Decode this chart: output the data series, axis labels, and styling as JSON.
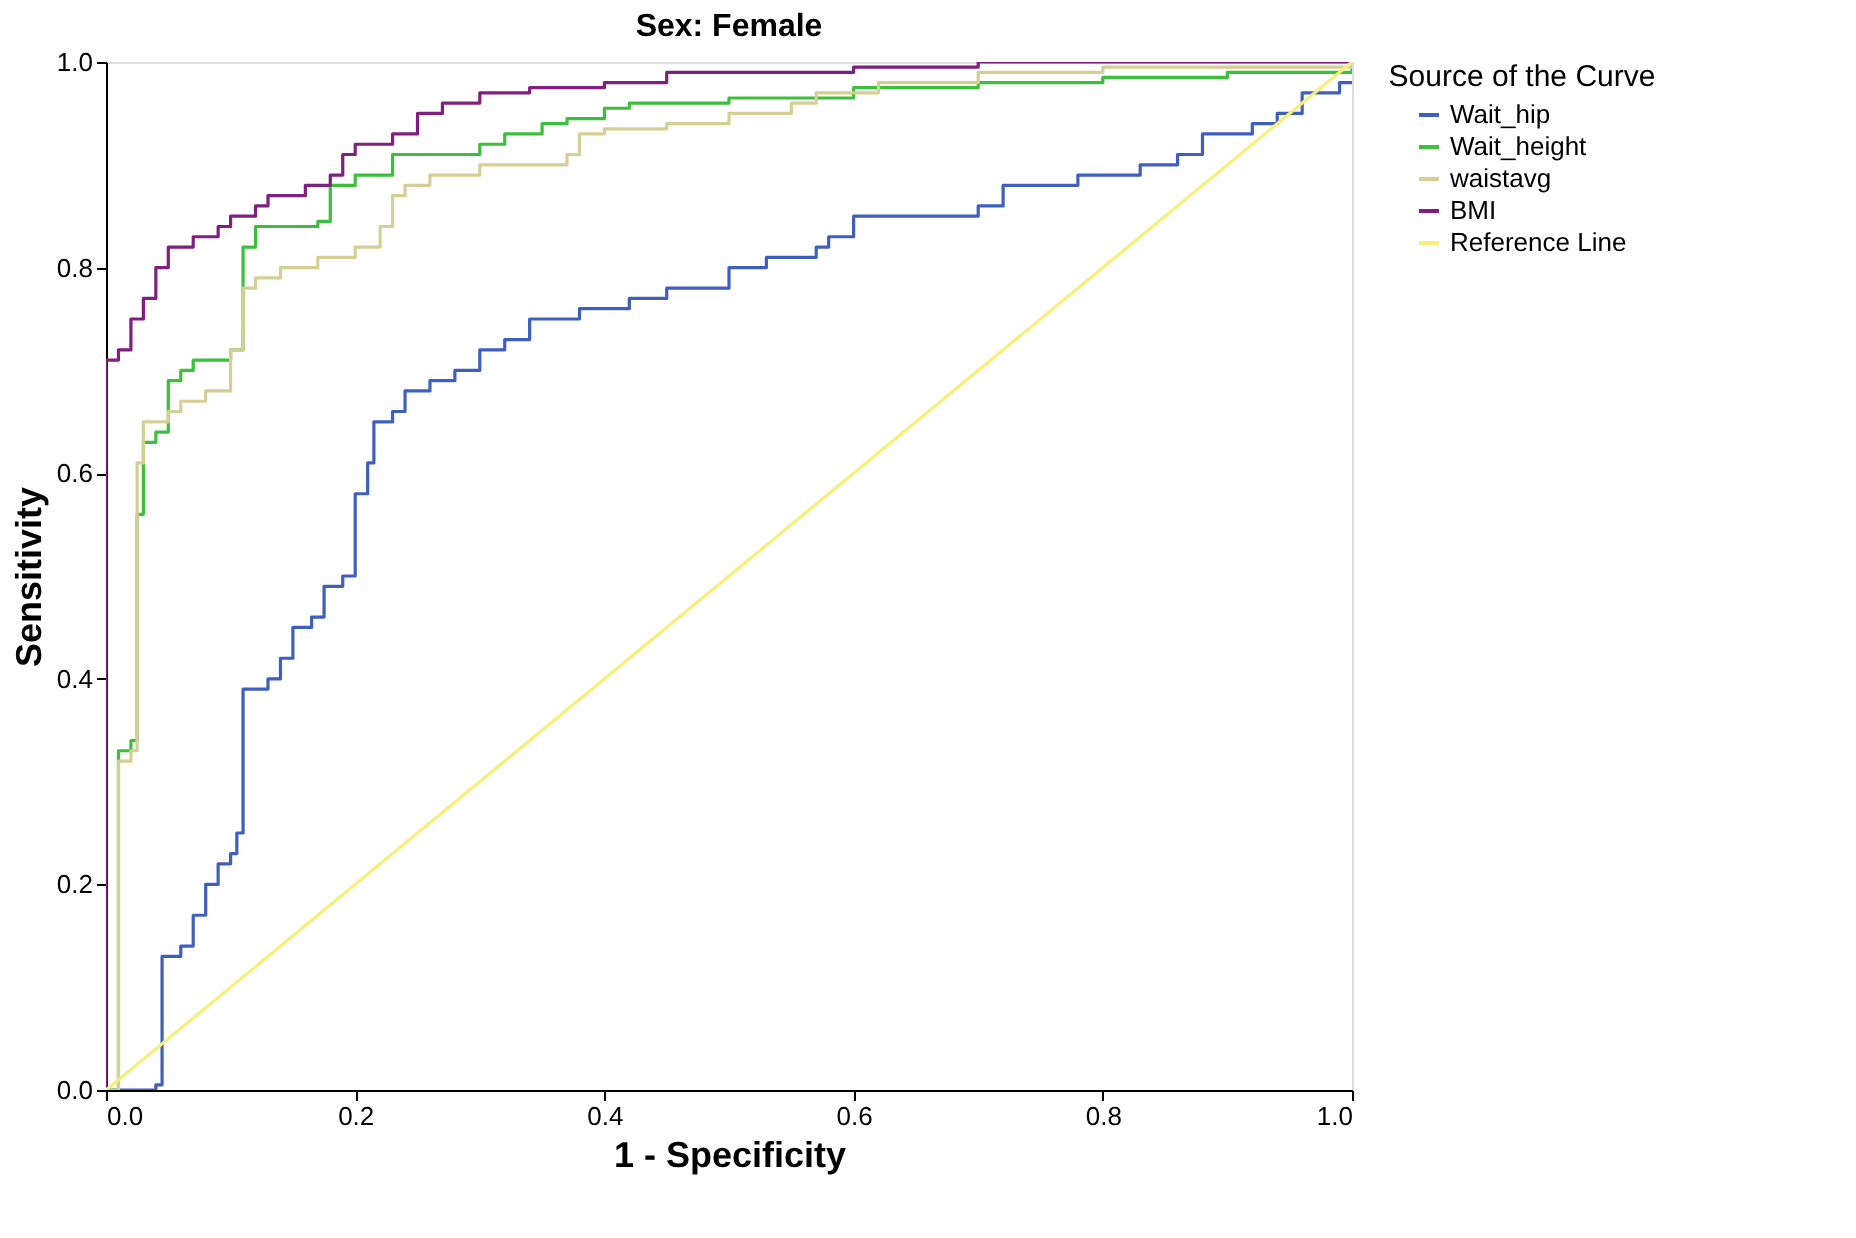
{
  "chart_data": {
    "type": "step",
    "title": "Sex: Female",
    "xlabel": "1 - Specificity",
    "ylabel": "Sensitivity",
    "legend_title": "Source of the Curve",
    "legend": "right",
    "grid": false,
    "marker": "none",
    "xlim": [
      0,
      1
    ],
    "ylim": [
      0,
      1
    ],
    "xticks": [
      {
        "value": 0,
        "label": "0.0"
      },
      {
        "value": 0.2,
        "label": "0.2"
      },
      {
        "value": 0.4,
        "label": "0.4"
      },
      {
        "value": 0.6,
        "label": "0.6"
      },
      {
        "value": 0.8,
        "label": "0.8"
      },
      {
        "value": 1,
        "label": "1.0"
      }
    ],
    "yticks": [
      {
        "value": 0,
        "label": "0.0"
      },
      {
        "value": 0.2,
        "label": "0.2"
      },
      {
        "value": 0.4,
        "label": "0.4"
      },
      {
        "value": 0.6,
        "label": "0.6"
      },
      {
        "value": 0.8,
        "label": "0.8"
      },
      {
        "value": 1,
        "label": "1.0"
      }
    ],
    "series": [
      {
        "name": "Wait_hip",
        "color": "#3f5fbf",
        "x": [
          0,
          0.04,
          0.045,
          0.06,
          0.07,
          0.08,
          0.09,
          0.1,
          0.105,
          0.11,
          0.13,
          0.14,
          0.15,
          0.165,
          0.175,
          0.19,
          0.2,
          0.21,
          0.215,
          0.23,
          0.24,
          0.26,
          0.28,
          0.3,
          0.32,
          0.34,
          0.38,
          0.42,
          0.45,
          0.5,
          0.53,
          0.57,
          0.58,
          0.6,
          0.7,
          0.72,
          0.78,
          0.83,
          0.86,
          0.88,
          0.92,
          0.94,
          0.96,
          0.99,
          1.0
        ],
        "values": [
          0,
          0.005,
          0.13,
          0.14,
          0.17,
          0.2,
          0.22,
          0.23,
          0.25,
          0.39,
          0.4,
          0.42,
          0.45,
          0.46,
          0.49,
          0.5,
          0.58,
          0.61,
          0.65,
          0.66,
          0.68,
          0.69,
          0.7,
          0.72,
          0.73,
          0.75,
          0.76,
          0.77,
          0.78,
          0.8,
          0.81,
          0.82,
          0.83,
          0.85,
          0.86,
          0.88,
          0.89,
          0.9,
          0.91,
          0.93,
          0.94,
          0.95,
          0.97,
          0.98,
          0.98
        ]
      },
      {
        "name": "Wait_height",
        "color": "#3cc03c",
        "x": [
          0,
          0.01,
          0.02,
          0.025,
          0.03,
          0.04,
          0.05,
          0.06,
          0.07,
          0.1,
          0.11,
          0.12,
          0.17,
          0.18,
          0.2,
          0.23,
          0.3,
          0.32,
          0.35,
          0.37,
          0.4,
          0.42,
          0.5,
          0.6,
          0.7,
          0.8,
          0.9,
          1.0
        ],
        "values": [
          0,
          0.33,
          0.34,
          0.56,
          0.63,
          0.64,
          0.69,
          0.7,
          0.71,
          0.72,
          0.82,
          0.84,
          0.845,
          0.88,
          0.89,
          0.91,
          0.92,
          0.93,
          0.94,
          0.945,
          0.955,
          0.96,
          0.965,
          0.975,
          0.98,
          0.985,
          0.99,
          0.995
        ]
      },
      {
        "name": "waistavg",
        "color": "#d6cf93",
        "x": [
          0,
          0.01,
          0.02,
          0.025,
          0.03,
          0.05,
          0.06,
          0.08,
          0.1,
          0.11,
          0.12,
          0.14,
          0.17,
          0.2,
          0.22,
          0.23,
          0.24,
          0.26,
          0.3,
          0.37,
          0.38,
          0.4,
          0.45,
          0.5,
          0.55,
          0.57,
          0.62,
          0.7,
          0.8,
          1.0
        ],
        "values": [
          0,
          0.32,
          0.33,
          0.61,
          0.65,
          0.66,
          0.67,
          0.68,
          0.72,
          0.78,
          0.79,
          0.8,
          0.81,
          0.82,
          0.84,
          0.87,
          0.88,
          0.89,
          0.9,
          0.91,
          0.93,
          0.935,
          0.94,
          0.95,
          0.96,
          0.97,
          0.98,
          0.99,
          0.995,
          1.0
        ]
      },
      {
        "name": "BMI",
        "color": "#7f1f7f",
        "x": [
          0,
          0,
          0.01,
          0.02,
          0.03,
          0.04,
          0.05,
          0.07,
          0.09,
          0.1,
          0.12,
          0.13,
          0.16,
          0.18,
          0.19,
          0.2,
          0.23,
          0.25,
          0.27,
          0.3,
          0.34,
          0.4,
          0.45,
          0.6,
          0.7,
          1.0
        ],
        "values": [
          0,
          0.71,
          0.72,
          0.75,
          0.77,
          0.8,
          0.82,
          0.83,
          0.84,
          0.85,
          0.86,
          0.87,
          0.88,
          0.89,
          0.91,
          0.92,
          0.93,
          0.95,
          0.96,
          0.97,
          0.975,
          0.98,
          0.99,
          0.995,
          1.0,
          1.0
        ]
      },
      {
        "name": "Reference Line",
        "color": "#f5f07a",
        "type": "line",
        "x": [
          0,
          1
        ],
        "values": [
          0,
          1
        ]
      }
    ]
  }
}
